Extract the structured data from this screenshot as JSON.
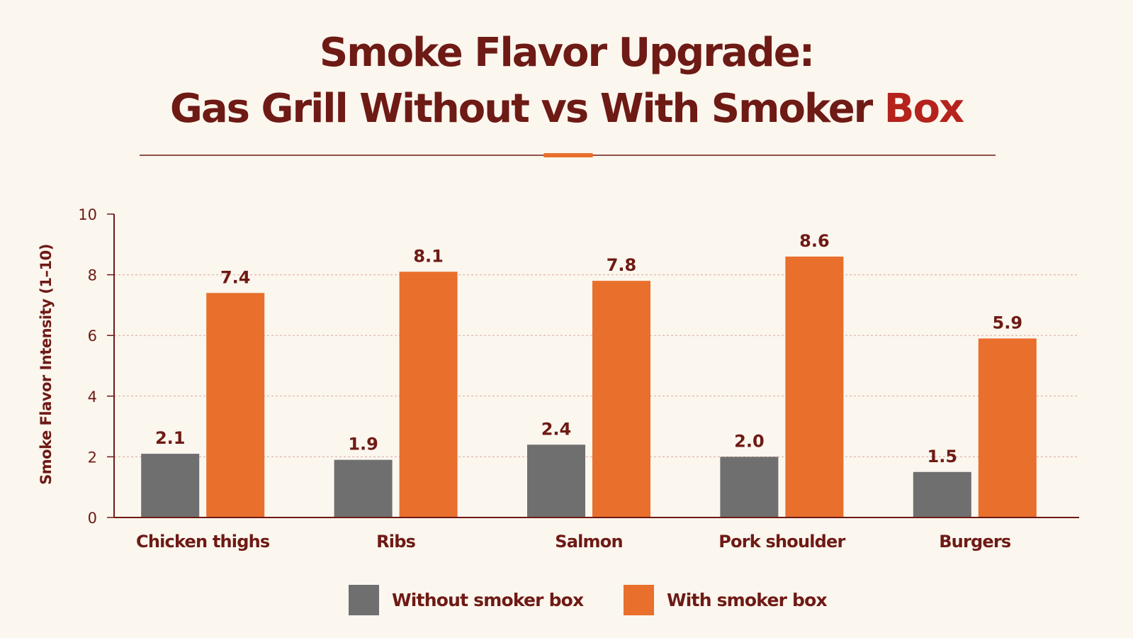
{
  "title": {
    "line1": "Smoke Flavor Upgrade:",
    "line2_main": "Gas Grill Without vs With Smoker ",
    "line2_accent": "Box"
  },
  "colors": {
    "title": "#6e1a15",
    "accent_red": "#b5231c",
    "accent_orange": "#e86f2c",
    "without": "#6f6f6f",
    "with": "#e86f2c",
    "grid": "#d9a9a1",
    "axis": "#6e1a15"
  },
  "chart_data": {
    "type": "bar",
    "ylabel": "Smoke Flavor Intensity (1–10)",
    "xlabel": "",
    "ylim": [
      0,
      10
    ],
    "yticks": [
      "0",
      "2",
      "4",
      "6",
      "8",
      "10"
    ],
    "grid": true,
    "legend_position": "bottom",
    "categories": [
      "Chicken thighs",
      "Ribs",
      "Salmon",
      "Pork shoulder",
      "Burgers"
    ],
    "series": [
      {
        "name": "Without smoker box",
        "color": "#6f6f6f",
        "values": [
          2.1,
          1.9,
          2.4,
          2.0,
          1.5
        ],
        "labels": [
          "2.1",
          "1.9",
          "2.4",
          "2.0",
          "1.5"
        ]
      },
      {
        "name": "With smoker box",
        "color": "#e86f2c",
        "values": [
          7.4,
          8.1,
          7.8,
          8.6,
          5.9
        ],
        "labels": [
          "7.4",
          "8.1",
          "7.8",
          "8.6",
          "5.9"
        ]
      }
    ]
  }
}
